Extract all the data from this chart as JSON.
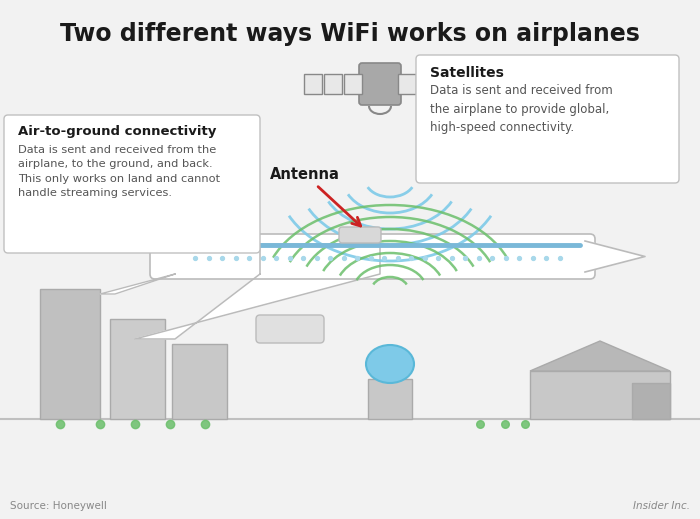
{
  "title": "Two different ways WiFi works on airplanes",
  "title_fontsize": 17,
  "background_color": "#f2f2f2",
  "text_color": "#1a1a1a",
  "source_text": "Source: Honeywell",
  "brand_text": "Insider Inc.",
  "satellite_label_title": "Satellites",
  "satellite_label_body": "Data is sent and received from\nthe airplane to provide global,\nhigh-speed connectivity.",
  "ground_label_title": "Air-to-ground connectivity",
  "ground_label_body": "Data is sent and received from the\nairplane, to the ground, and back.\nThis only works on land and cannot\nhandle streaming services.",
  "antenna_label": "Antenna",
  "satellite_wave_color": "#7ecae8",
  "ground_wave_color": "#6bbf6b",
  "box_color": "#ffffff",
  "box_edge_color": "#c0c0c0",
  "arrow_color": "#cc2222",
  "plane_color": "#ffffff",
  "plane_edge": "#bbbbbb",
  "window_color": "#a8d8ea",
  "window_stripe_color": "#7ab8d8",
  "building_color": "#cccccc",
  "ground_line_color": "#c0c0c0",
  "satellite_body_color": "#aaaaaa",
  "satellite_panel_color": "#e8e8e8",
  "dish_color": "#7ecae8",
  "tree_color": "#6bbf6b"
}
